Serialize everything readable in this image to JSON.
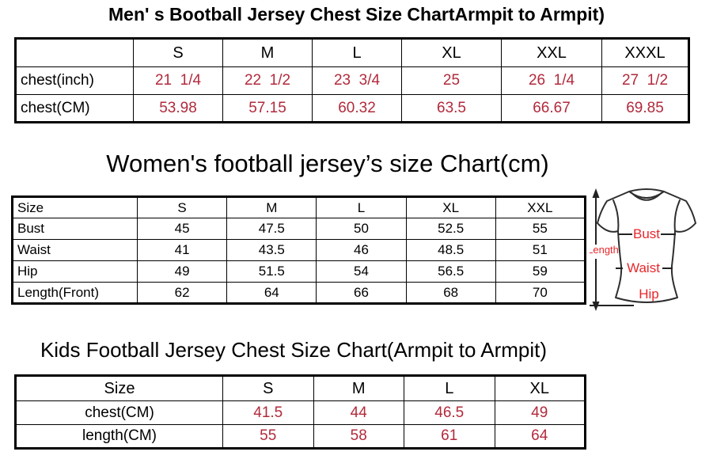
{
  "colors": {
    "table_value_red": "#b12a3c",
    "diagram_red": "#e8262b",
    "border_black": "#000000",
    "background": "#ffffff"
  },
  "men_chart": {
    "title": "Men' s Bootball Jersey Chest Size ChartArmpit to Armpit)",
    "columns": [
      "",
      "S",
      "M",
      "L",
      "XL",
      "XXL",
      "XXXL"
    ],
    "rows": [
      {
        "label": "chest(inch)",
        "values": [
          "21  1/4",
          "22  1/2",
          "23  3/4",
          "25",
          "26  1/4",
          "27  1/2"
        ]
      },
      {
        "label": "chest(CM)",
        "values": [
          "53.98",
          "57.15",
          "60.32",
          "63.5",
          "66.67",
          "69.85"
        ]
      }
    ]
  },
  "women_chart": {
    "title": "Women's football jersey’s size Chart(cm)",
    "columns": [
      "Size",
      "S",
      "M",
      "L",
      "XL",
      "XXL"
    ],
    "rows": [
      {
        "label": "Bust",
        "values": [
          "45",
          "47.5",
          "50",
          "52.5",
          "55"
        ]
      },
      {
        "label": "Waist",
        "values": [
          "41",
          "43.5",
          "46",
          "48.5",
          "51"
        ]
      },
      {
        "label": "Hip",
        "values": [
          "49",
          "51.5",
          "54",
          "56.5",
          "59"
        ]
      },
      {
        "label": "Length(Front)",
        "values": [
          "62",
          "64",
          "66",
          "68",
          "70"
        ]
      }
    ]
  },
  "kids_chart": {
    "title": "Kids Football Jersey Chest Size Chart(Armpit to Armpit)",
    "columns": [
      "Size",
      "S",
      "M",
      "L",
      "XL"
    ],
    "rows": [
      {
        "label": "chest(CM)",
        "values": [
          "41.5",
          "44",
          "46.5",
          "49"
        ]
      },
      {
        "label": "length(CM)",
        "values": [
          "55",
          "58",
          "61",
          "64"
        ]
      }
    ]
  },
  "diagram": {
    "length": "Length",
    "bust": "Bust",
    "waist": "Waist",
    "hip": "Hip"
  }
}
